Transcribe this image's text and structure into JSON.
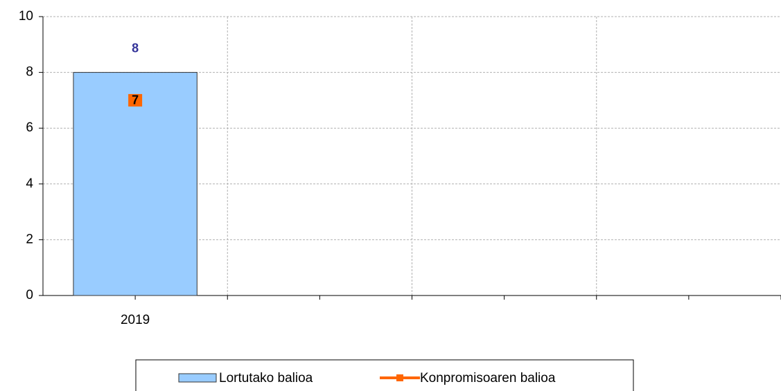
{
  "chart_data": {
    "type": "bar_line",
    "categories": [
      "2019",
      null,
      null,
      null
    ],
    "series": [
      {
        "name": "Lortutako balioa",
        "type": "bar",
        "color": "#99ccff",
        "values": [
          8,
          null,
          null,
          null
        ]
      },
      {
        "name": "Konpromisoaren balioa",
        "type": "line",
        "color": "#ff6600",
        "values": [
          7,
          null,
          null,
          null
        ]
      }
    ],
    "ylim": [
      0,
      10
    ],
    "yticks": [
      0,
      2,
      4,
      6,
      8,
      10
    ],
    "grid": true,
    "legend": "bottom"
  }
}
